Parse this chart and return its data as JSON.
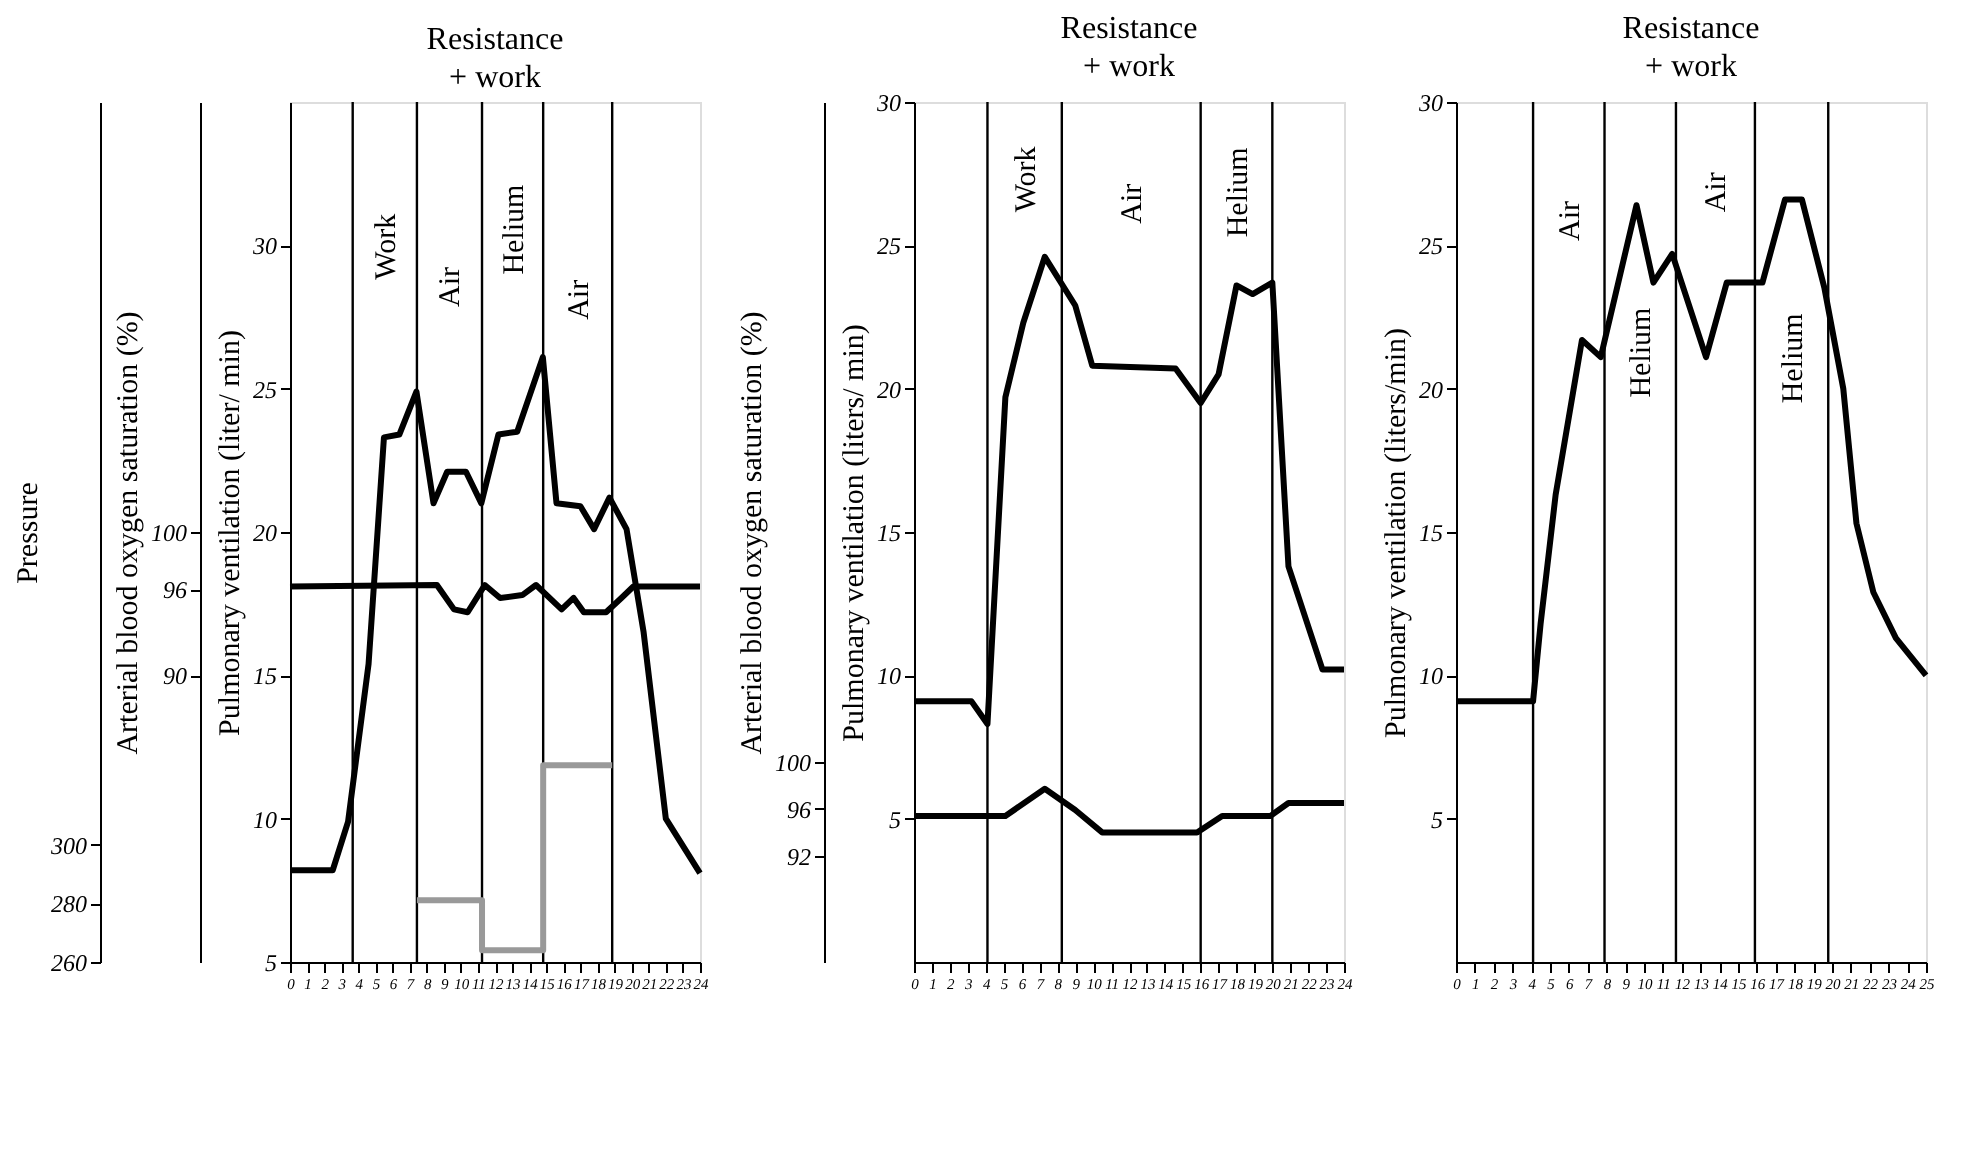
{
  "chart_data": [
    {
      "type": "line",
      "title": "Resistance",
      "subtitle": "+ work",
      "ylabel": "Pulmonary ventilation (liter/ min)",
      "y2label": "Arterial blood oxygen saturation (%)",
      "y3label": "Pressure",
      "xlim": [
        0,
        24
      ],
      "xticks": [
        0,
        1,
        2,
        3,
        4,
        5,
        6,
        7,
        8,
        9,
        10,
        11,
        12,
        13,
        14,
        15,
        16,
        17,
        18,
        19,
        20,
        21,
        22,
        23,
        24
      ],
      "ylim": [
        5,
        35
      ],
      "yticks": [
        5,
        10,
        15,
        20,
        25,
        30
      ],
      "y2lim": [
        70,
        130
      ],
      "y2ticks": [
        90,
        96,
        100
      ],
      "y3lim": [
        260,
        553
      ],
      "y3ticks": [
        260,
        280,
        300
      ],
      "grid": false,
      "series": [
        {
          "color": "#000000",
          "x": [
            0,
            2.5,
            3.4,
            4.6,
            5.5,
            6.4,
            7.4,
            8.4,
            9.2,
            10.3,
            11.2,
            12.2,
            13.3,
            14.8,
            15.6,
            17.0,
            17.8,
            18.7,
            19.7,
            20.7,
            22.0,
            24
          ],
          "values": [
            8.2,
            8.2,
            9.9,
            15.4,
            23.3,
            23.4,
            24.9,
            21.0,
            22.1,
            22.1,
            21.0,
            23.4,
            23.5,
            26.1,
            21.0,
            20.9,
            20.1,
            21.2,
            20.1,
            16.5,
            10.0,
            8.1
          ]
        },
        {
          "color": "#000000",
          "axis": "y2",
          "x": [
            0,
            8.6,
            9.6,
            10.4,
            11.4,
            12.3,
            13.6,
            14.4,
            15.9,
            16.6,
            17.2,
            18.5,
            19.4,
            20.1,
            24
          ],
          "values": [
            96.2,
            96.3,
            94.6,
            94.4,
            96.3,
            95.4,
            95.6,
            96.3,
            94.6,
            95.4,
            94.4,
            94.4,
            95.4,
            96.2,
            96.2
          ]
        },
        {
          "type": "step",
          "color": "#999999",
          "axis": "y3",
          "x": [
            7.43,
            11.24,
            14.82,
            18.86
          ],
          "values": [
            281,
            264,
            327,
            327
          ]
        }
      ],
      "ref_lines": [
        {
          "axis": "x",
          "value": 3.67
        },
        {
          "axis": "x",
          "value": 7.43
        },
        {
          "axis": "x",
          "value": 11.24
        },
        {
          "axis": "x",
          "value": 14.82
        },
        {
          "axis": "x",
          "value": 18.86
        }
      ],
      "annotations": [
        "Work",
        "Air",
        "Helium",
        "Air"
      ]
    },
    {
      "type": "line",
      "title": "Resistance",
      "subtitle": "+ work",
      "ylabel": "Pulmonary ventilation (liters/ min)",
      "y2label": "Arterial blood oxygen saturation (%)",
      "xlim": [
        0,
        24
      ],
      "xticks": [
        0,
        1,
        2,
        3,
        4,
        5,
        6,
        7,
        8,
        9,
        10,
        11,
        12,
        13,
        14,
        15,
        16,
        17,
        18,
        19,
        20,
        21,
        22,
        23,
        24
      ],
      "ylim": [
        0,
        30
      ],
      "yticks": [
        5,
        10,
        15,
        20,
        25,
        30
      ],
      "y2lim": [
        83,
        156
      ],
      "y2ticks": [
        92,
        96,
        100
      ],
      "grid": false,
      "series": [
        {
          "color": "#000000",
          "x": [
            0,
            3.2,
            4.1,
            5.1,
            6.1,
            7.3,
            9.0,
            9.95,
            14.6,
            16.0,
            17.0,
            18.0,
            18.9,
            20.0,
            20.9,
            22.8,
            24
          ],
          "values": [
            9.1,
            9.1,
            8.3,
            19.7,
            22.3,
            24.6,
            22.9,
            20.8,
            20.7,
            19.5,
            20.5,
            23.6,
            23.3,
            23.7,
            13.8,
            10.2,
            10.2
          ]
        },
        {
          "color": "#000000",
          "axis": "y2",
          "x": [
            0,
            5.1,
            7.3,
            9.0,
            10.5,
            15.8,
            17.2,
            19.9,
            20.9,
            24
          ],
          "values": [
            95.4,
            95.4,
            97.7,
            95.9,
            94.0,
            94.0,
            95.4,
            95.4,
            96.5,
            96.5
          ]
        }
      ],
      "ref_lines": [
        {
          "axis": "x",
          "value": 4.1
        },
        {
          "axis": "x",
          "value": 8.25
        },
        {
          "axis": "x",
          "value": 16.0
        },
        {
          "axis": "x",
          "value": 20.0
        }
      ],
      "annotations": [
        "Work",
        "Air",
        "Helium"
      ]
    },
    {
      "type": "line",
      "title": "Resistance",
      "subtitle": "+ work",
      "ylabel": "Pulmonary ventilation (liters/min)",
      "xlim": [
        0,
        25
      ],
      "xticks": [
        0,
        1,
        2,
        3,
        4,
        5,
        6,
        7,
        8,
        9,
        10,
        11,
        12,
        13,
        14,
        15,
        16,
        17,
        18,
        19,
        20,
        21,
        22,
        23,
        24,
        25
      ],
      "ylim": [
        0,
        30
      ],
      "yticks": [
        5,
        10,
        15,
        20,
        25,
        30
      ],
      "grid": false,
      "series": [
        {
          "color": "#000000",
          "x": [
            0,
            4.1,
            4.5,
            5.3,
            6.7,
            7.7,
            9.6,
            10.5,
            11.5,
            13.3,
            14.4,
            16.3,
            17.5,
            18.4,
            19.6,
            20.6,
            21.3,
            22.2,
            23.4,
            25
          ],
          "values": [
            9.1,
            9.1,
            11.8,
            16.3,
            21.7,
            21.1,
            26.4,
            23.7,
            24.7,
            21.1,
            23.7,
            23.7,
            26.6,
            26.6,
            23.5,
            20.0,
            15.3,
            12.9,
            11.3,
            10.0
          ]
        }
      ],
      "ref_lines": [
        {
          "axis": "x",
          "value": 4.1
        },
        {
          "axis": "x",
          "value": 7.9
        },
        {
          "axis": "x",
          "value": 11.7
        },
        {
          "axis": "x",
          "value": 15.9
        },
        {
          "axis": "x",
          "value": 19.8
        }
      ],
      "annotations": [
        "Air",
        "Helium",
        "Air",
        "Helium"
      ]
    }
  ]
}
